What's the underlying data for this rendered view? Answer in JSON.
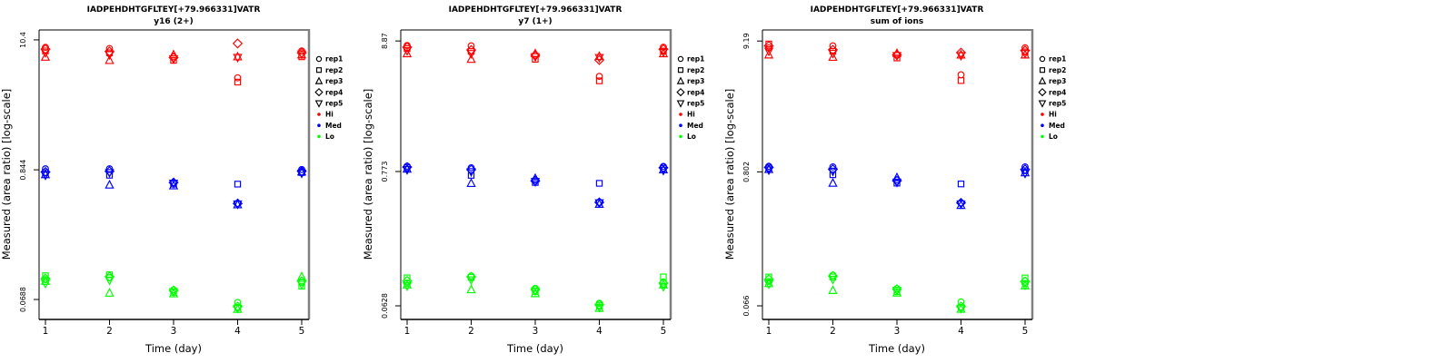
{
  "background": "#FFFFFF",
  "colors": {
    "hi": "#FF0000",
    "med": "#0000FF",
    "lo": "#00FF00",
    "axis": "#000000",
    "box_shadow": "#808080"
  },
  "legend": {
    "items": [
      {
        "label": "rep1",
        "marker": "circle"
      },
      {
        "label": "rep2",
        "marker": "square"
      },
      {
        "label": "rep3",
        "marker": "triangle-up"
      },
      {
        "label": "rep4",
        "marker": "diamond"
      },
      {
        "label": "rep5",
        "marker": "triangle-down"
      },
      {
        "label": "Hi",
        "dot": "#FF0000"
      },
      {
        "label": "Med",
        "dot": "#0000FF"
      },
      {
        "label": "Lo",
        "dot": "#00FF00"
      }
    ]
  },
  "chart_data": [
    {
      "type": "scatter",
      "title": "IADPEHDHTGFLTEY[+79.966331]VATR",
      "subtitle": "y16 (2+)",
      "xlabel": "Time (day)",
      "ylabel": "Measured (area ratio) [log-scale]",
      "x": [
        1,
        2,
        3,
        4,
        5
      ],
      "yscale": "log",
      "ylim": [
        0.0468,
        12.6
      ],
      "grid": false,
      "legend_position": "right",
      "yticks": [
        {
          "value": 10.4,
          "label": "10.4"
        },
        {
          "value": 0.844,
          "label": "0.844"
        },
        {
          "value": 0.0688,
          "label": "0.0688"
        }
      ],
      "series": [
        {
          "condition": "Hi",
          "rep": "rep1",
          "marker": "circle",
          "color": "#FF0000",
          "values": [
            9.0,
            8.8,
            7.5,
            5.0,
            8.4
          ]
        },
        {
          "condition": "Hi",
          "rep": "rep2",
          "marker": "square",
          "color": "#FF0000",
          "values": [
            8.4,
            8.1,
            7.0,
            4.6,
            7.5
          ]
        },
        {
          "condition": "Hi",
          "rep": "rep3",
          "marker": "triangle-up",
          "color": "#FF0000",
          "values": [
            7.45,
            7.0,
            7.8,
            7.5,
            7.8
          ]
        },
        {
          "condition": "Hi",
          "rep": "rep4",
          "marker": "diamond",
          "color": "#FF0000",
          "values": [
            8.7,
            8.3,
            7.4,
            9.7,
            8.1
          ]
        },
        {
          "condition": "Hi",
          "rep": "rep5",
          "marker": "triangle-down",
          "color": "#FF0000",
          "values": [
            8.1,
            7.8,
            7.2,
            7.4,
            7.9
          ]
        },
        {
          "condition": "Med",
          "rep": "rep1",
          "marker": "circle",
          "color": "#0000FF",
          "values": [
            0.86,
            0.86,
            0.66,
            0.44,
            0.85
          ]
        },
        {
          "condition": "Med",
          "rep": "rep2",
          "marker": "square",
          "color": "#0000FF",
          "values": [
            0.8,
            0.76,
            0.64,
            0.64,
            0.8
          ]
        },
        {
          "condition": "Med",
          "rep": "rep3",
          "marker": "triangle-up",
          "color": "#0000FF",
          "values": [
            0.77,
            0.63,
            0.62,
            0.43,
            0.81
          ]
        },
        {
          "condition": "Med",
          "rep": "rep4",
          "marker": "diamond",
          "color": "#0000FF",
          "values": [
            0.81,
            0.82,
            0.66,
            0.44,
            0.82
          ]
        },
        {
          "condition": "Med",
          "rep": "rep5",
          "marker": "triangle-down",
          "color": "#0000FF",
          "values": [
            0.76,
            0.8,
            0.65,
            0.435,
            0.79
          ]
        },
        {
          "condition": "Lo",
          "rep": "rep1",
          "marker": "circle",
          "color": "#00FF00",
          "values": [
            0.101,
            0.105,
            0.083,
            0.065,
            0.096
          ]
        },
        {
          "condition": "Lo",
          "rep": "rep2",
          "marker": "square",
          "color": "#00FF00",
          "values": [
            0.109,
            0.111,
            0.079,
            0.059,
            0.089
          ]
        },
        {
          "condition": "Lo",
          "rep": "rep3",
          "marker": "triangle-up",
          "color": "#00FF00",
          "values": [
            0.098,
            0.078,
            0.077,
            0.057,
            0.107
          ]
        },
        {
          "condition": "Lo",
          "rep": "rep4",
          "marker": "diamond",
          "color": "#00FF00",
          "values": [
            0.103,
            0.107,
            0.082,
            0.06,
            0.098
          ]
        },
        {
          "condition": "Lo",
          "rep": "rep5",
          "marker": "triangle-down",
          "color": "#00FF00",
          "values": [
            0.094,
            0.1,
            0.08,
            0.058,
            0.092
          ]
        }
      ]
    },
    {
      "type": "scatter",
      "title": "IADPEHDHTGFLTEY[+79.966331]VATR",
      "subtitle": "y7 (1+)",
      "xlabel": "Time (day)",
      "ylabel": "Measured (area ratio) [log-scale]",
      "x": [
        1,
        2,
        3,
        4,
        5
      ],
      "yscale": "log",
      "ylim": [
        0.0487,
        10.9
      ],
      "grid": false,
      "legend_position": "right",
      "yticks": [
        {
          "value": 8.87,
          "label": "8.87"
        },
        {
          "value": 0.773,
          "label": "0.773"
        },
        {
          "value": 0.0628,
          "label": "0.0628"
        }
      ],
      "series": [
        {
          "condition": "Hi",
          "rep": "rep1",
          "marker": "circle",
          "color": "#FF0000",
          "values": [
            8.15,
            8.1,
            6.8,
            4.58,
            7.9
          ]
        },
        {
          "condition": "Hi",
          "rep": "rep2",
          "marker": "square",
          "color": "#FF0000",
          "values": [
            7.7,
            7.3,
            6.3,
            4.21,
            7.35
          ]
        },
        {
          "condition": "Hi",
          "rep": "rep3",
          "marker": "triangle-up",
          "color": "#FF0000",
          "values": [
            7.0,
            6.3,
            7.0,
            6.65,
            7.0
          ]
        },
        {
          "condition": "Hi",
          "rep": "rep4",
          "marker": "diamond",
          "color": "#FF0000",
          "values": [
            7.9,
            7.5,
            6.8,
            6.21,
            7.6
          ]
        },
        {
          "condition": "Hi",
          "rep": "rep5",
          "marker": "triangle-down",
          "color": "#FF0000",
          "values": [
            7.4,
            7.0,
            6.6,
            6.5,
            7.2
          ]
        },
        {
          "condition": "Med",
          "rep": "rep1",
          "marker": "circle",
          "color": "#0000FF",
          "values": [
            0.855,
            0.83,
            0.66,
            0.434,
            0.85
          ]
        },
        {
          "condition": "Med",
          "rep": "rep2",
          "marker": "square",
          "color": "#0000FF",
          "values": [
            0.83,
            0.72,
            0.63,
            0.62,
            0.82
          ]
        },
        {
          "condition": "Med",
          "rep": "rep3",
          "marker": "triangle-up",
          "color": "#0000FF",
          "values": [
            0.81,
            0.62,
            0.68,
            0.42,
            0.8
          ]
        },
        {
          "condition": "Med",
          "rep": "rep4",
          "marker": "diamond",
          "color": "#0000FF",
          "values": [
            0.84,
            0.8,
            0.65,
            0.434,
            0.83
          ]
        },
        {
          "condition": "Med",
          "rep": "rep5",
          "marker": "triangle-down",
          "color": "#0000FF",
          "values": [
            0.8,
            0.77,
            0.64,
            0.43,
            0.79
          ]
        },
        {
          "condition": "Lo",
          "rep": "rep1",
          "marker": "circle",
          "color": "#00FF00",
          "values": [
            0.096,
            0.11,
            0.087,
            0.066,
            0.098
          ]
        },
        {
          "condition": "Lo",
          "rep": "rep2",
          "marker": "square",
          "color": "#00FF00",
          "values": [
            0.106,
            0.107,
            0.082,
            0.063,
            0.108
          ]
        },
        {
          "condition": "Lo",
          "rep": "rep3",
          "marker": "triangle-up",
          "color": "#00FF00",
          "values": [
            0.093,
            0.085,
            0.079,
            0.06,
            0.093
          ]
        },
        {
          "condition": "Lo",
          "rep": "rep4",
          "marker": "diamond",
          "color": "#00FF00",
          "values": [
            0.1,
            0.108,
            0.085,
            0.064,
            0.096
          ]
        },
        {
          "condition": "Lo",
          "rep": "rep5",
          "marker": "triangle-down",
          "color": "#00FF00",
          "values": [
            0.091,
            0.102,
            0.083,
            0.061,
            0.09
          ]
        }
      ]
    },
    {
      "type": "scatter",
      "title": "IADPEHDHTGFLTEY[+79.966331]VATR",
      "subtitle": "sum of ions",
      "xlabel": "Time (day)",
      "ylabel": "Measured (area ratio) [log-scale]",
      "x": [
        1,
        2,
        3,
        4,
        5
      ],
      "yscale": "log",
      "ylim": [
        0.0512,
        11.3
      ],
      "grid": false,
      "legend_position": "right",
      "yticks": [
        {
          "value": 9.19,
          "label": "9.19"
        },
        {
          "value": 0.802,
          "label": "0.802"
        },
        {
          "value": 0.066,
          "label": "0.066"
        }
      ],
      "series": [
        {
          "condition": "Hi",
          "rep": "rep1",
          "marker": "circle",
          "color": "#FF0000",
          "values": [
            8.1,
            8.4,
            7.1,
            4.9,
            8.1
          ]
        },
        {
          "condition": "Hi",
          "rep": "rep2",
          "marker": "square",
          "color": "#FF0000",
          "values": [
            8.7,
            7.6,
            6.7,
            4.4,
            7.5
          ]
        },
        {
          "condition": "Hi",
          "rep": "rep3",
          "marker": "triangle-up",
          "color": "#FF0000",
          "values": [
            7.1,
            6.8,
            7.3,
            7.1,
            7.1
          ]
        },
        {
          "condition": "Hi",
          "rep": "rep4",
          "marker": "diamond",
          "color": "#FF0000",
          "values": [
            8.4,
            7.8,
            7.1,
            7.4,
            7.7
          ]
        },
        {
          "condition": "Hi",
          "rep": "rep5",
          "marker": "triangle-down",
          "color": "#FF0000",
          "values": [
            7.6,
            7.3,
            7.0,
            7.0,
            7.3
          ]
        },
        {
          "condition": "Med",
          "rep": "rep1",
          "marker": "circle",
          "color": "#0000FF",
          "values": [
            0.89,
            0.88,
            0.69,
            0.45,
            0.88
          ]
        },
        {
          "condition": "Med",
          "rep": "rep2",
          "marker": "square",
          "color": "#0000FF",
          "values": [
            0.86,
            0.76,
            0.65,
            0.64,
            0.82
          ]
        },
        {
          "condition": "Med",
          "rep": "rep3",
          "marker": "triangle-up",
          "color": "#0000FF",
          "values": [
            0.84,
            0.65,
            0.72,
            0.43,
            0.79
          ]
        },
        {
          "condition": "Med",
          "rep": "rep4",
          "marker": "diamond",
          "color": "#0000FF",
          "values": [
            0.87,
            0.84,
            0.68,
            0.45,
            0.84
          ]
        },
        {
          "condition": "Med",
          "rep": "rep5",
          "marker": "triangle-down",
          "color": "#0000FF",
          "values": [
            0.83,
            0.81,
            0.66,
            0.44,
            0.78
          ]
        },
        {
          "condition": "Lo",
          "rep": "rep1",
          "marker": "circle",
          "color": "#00FF00",
          "values": [
            0.104,
            0.117,
            0.091,
            0.071,
            0.1
          ]
        },
        {
          "condition": "Lo",
          "rep": "rep2",
          "marker": "square",
          "color": "#00FF00",
          "values": [
            0.113,
            0.113,
            0.086,
            0.064,
            0.111
          ]
        },
        {
          "condition": "Lo",
          "rep": "rep3",
          "marker": "triangle-up",
          "color": "#00FF00",
          "values": [
            0.1,
            0.088,
            0.084,
            0.062,
            0.096
          ]
        },
        {
          "condition": "Lo",
          "rep": "rep4",
          "marker": "diamond",
          "color": "#00FF00",
          "values": [
            0.108,
            0.115,
            0.09,
            0.065,
            0.104
          ]
        },
        {
          "condition": "Lo",
          "rep": "rep5",
          "marker": "triangle-down",
          "color": "#00FF00",
          "values": [
            0.099,
            0.108,
            0.088,
            0.063,
            0.097
          ]
        }
      ]
    }
  ]
}
